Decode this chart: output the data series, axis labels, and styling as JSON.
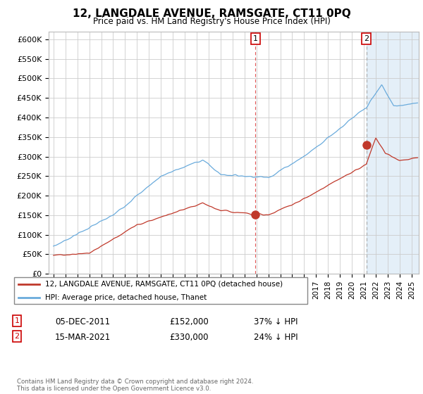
{
  "title": "12, LANGDALE AVENUE, RAMSGATE, CT11 0PQ",
  "subtitle": "Price paid vs. HM Land Registry's House Price Index (HPI)",
  "ylabel_ticks": [
    "£0",
    "£50K",
    "£100K",
    "£150K",
    "£200K",
    "£250K",
    "£300K",
    "£350K",
    "£400K",
    "£450K",
    "£500K",
    "£550K",
    "£600K"
  ],
  "ytick_values": [
    0,
    50000,
    100000,
    150000,
    200000,
    250000,
    300000,
    350000,
    400000,
    450000,
    500000,
    550000,
    600000
  ],
  "ylim": [
    0,
    620000
  ],
  "xlim_start": 1994.6,
  "xlim_end": 2025.6,
  "sale1_x": 2011.92,
  "sale1_y": 152000,
  "sale2_x": 2021.21,
  "sale2_y": 330000,
  "vline1_x": 2011.92,
  "vline2_x": 2021.21,
  "legend_line1": "12, LANGDALE AVENUE, RAMSGATE, CT11 0PQ (detached house)",
  "legend_line2": "HPI: Average price, detached house, Thanet",
  "table_row1": [
    "1",
    "05-DEC-2011",
    "£152,000",
    "37% ↓ HPI"
  ],
  "table_row2": [
    "2",
    "15-MAR-2021",
    "£330,000",
    "24% ↓ HPI"
  ],
  "footer": "Contains HM Land Registry data © Crown copyright and database right 2024.\nThis data is licensed under the Open Government Licence v3.0.",
  "line_color_red": "#c0392b",
  "line_color_blue": "#6aabdc",
  "vline1_color": "#e05555",
  "vline2_color": "#aaaaaa",
  "bg_fill_color": "#ddeeff",
  "background_color": "#ffffff",
  "grid_color": "#cccccc"
}
